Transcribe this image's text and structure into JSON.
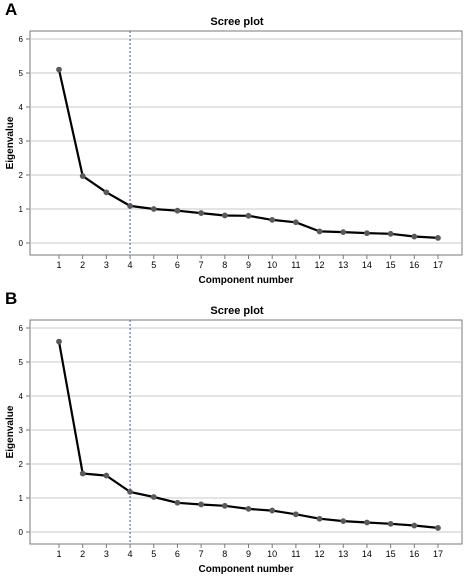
{
  "panels": [
    {
      "label": "A"
    },
    {
      "label": "B"
    }
  ],
  "colors": {
    "line": "#000000",
    "marker": "#5a5a5a",
    "grid": "#c8c8c8",
    "axis": "#7a7a7a",
    "reference": "#3a5c9a"
  },
  "chart_data": [
    {
      "type": "line",
      "title": "Scree plot",
      "xlabel": "Component number",
      "ylabel": "Eigenvalue",
      "categories": [
        1,
        2,
        3,
        4,
        5,
        6,
        7,
        8,
        9,
        10,
        11,
        12,
        13,
        14,
        15,
        16,
        17
      ],
      "values": [
        5.1,
        1.97,
        1.49,
        1.09,
        1.0,
        0.95,
        0.88,
        0.81,
        0.8,
        0.68,
        0.61,
        0.34,
        0.32,
        0.29,
        0.27,
        0.19,
        0.15
      ],
      "ylim": [
        0,
        6
      ],
      "yticks": [
        0,
        1,
        2,
        3,
        4,
        5,
        6
      ],
      "reference_x": 4,
      "grid": true,
      "marker": "circle"
    },
    {
      "type": "line",
      "title": "Scree plot",
      "xlabel": "Component number",
      "ylabel": "Eigenvalue",
      "categories": [
        1,
        2,
        3,
        4,
        5,
        6,
        7,
        8,
        9,
        10,
        11,
        12,
        13,
        14,
        15,
        16,
        17
      ],
      "values": [
        5.6,
        1.72,
        1.66,
        1.18,
        1.03,
        0.86,
        0.81,
        0.77,
        0.68,
        0.63,
        0.52,
        0.39,
        0.32,
        0.28,
        0.24,
        0.19,
        0.12
      ],
      "ylim": [
        0,
        6
      ],
      "yticks": [
        0,
        1,
        2,
        3,
        4,
        5,
        6
      ],
      "reference_x": 4,
      "grid": true,
      "marker": "circle"
    }
  ]
}
